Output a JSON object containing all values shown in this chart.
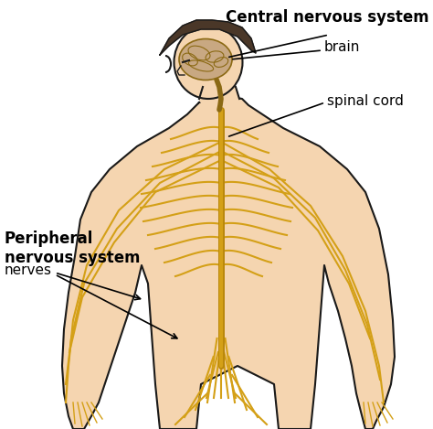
{
  "bg_color": "#ffffff",
  "skin_color": "#f5d5b0",
  "skin_outline": "#1a1a1a",
  "nerve_color": "#d4a017",
  "nerve_dark": "#b8860b",
  "brain_color": "#c8a882",
  "hair_color": "#4a3728",
  "title": "Central nervous system",
  "label_brain": "brain",
  "label_spinal": "spinal cord",
  "label_pns": "Peripheral\nnervous system",
  "label_nerves": "nerves",
  "label_fontsize": 11,
  "title_fontsize": 12,
  "pns_fontsize": 12,
  "figsize": [
    4.74,
    4.69
  ],
  "dpi": 100
}
